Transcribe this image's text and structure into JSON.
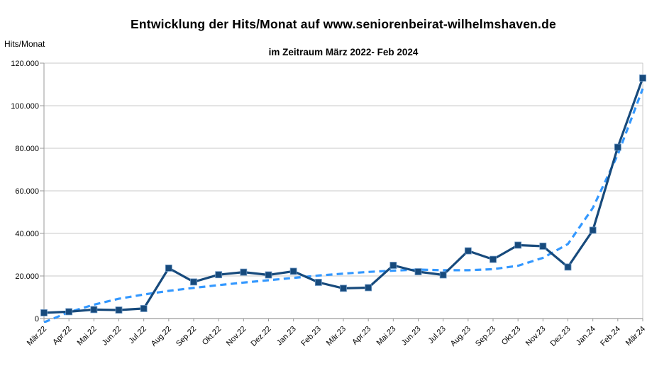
{
  "header": {
    "title": "Entwicklung der Hits/Monat auf www.seniorenbeirat-wilhelmshaven.de",
    "subtitle": "im Zeitraum März 2022- Feb 2024"
  },
  "chart_data": {
    "type": "line",
    "title": "Entwicklung der Hits/Monat auf www.seniorenbeirat-wilhelmshaven.de",
    "subtitle": "im Zeitraum März 2022- Feb 2024",
    "xlabel": "",
    "ylabel": "Hits/Monat",
    "ylim": [
      0,
      120000
    ],
    "grid": "horizontal",
    "legend_position": "none",
    "y_ticks": [
      0,
      20000,
      40000,
      60000,
      80000,
      100000,
      120000
    ],
    "y_tick_labels": [
      "0",
      "20.000",
      "40.000",
      "60.000",
      "80.000",
      "100.000",
      "120.000"
    ],
    "x_tick_rotation_deg": 45,
    "categories": [
      "Mär.22",
      "Apr.22",
      "Mai.22",
      "Jun.22",
      "Jul.22",
      "Aug.22",
      "Sep.22",
      "Okt.22",
      "Nov.22",
      "Dez.22",
      "Jan.23",
      "Feb.23",
      "Mär.23",
      "Apr.23",
      "Mai.23",
      "Jun.23",
      "Jul.23",
      "Aug.23",
      "Sep.23",
      "Okt.23",
      "Nov.23",
      "Dez.23",
      "Jan.24",
      "Feb.24",
      "Mär.24"
    ],
    "series": [
      {
        "name": "Hits/Monat",
        "style": "solid-line-square-markers",
        "color": "#174A7C",
        "values": [
          2700,
          3200,
          4200,
          4000,
          4700,
          23700,
          17200,
          20600,
          21800,
          20500,
          22200,
          17000,
          14200,
          14500,
          25000,
          22000,
          20500,
          31800,
          27800,
          34500,
          34000,
          24200,
          41500,
          80500,
          113000
        ]
      },
      {
        "name": "Trend",
        "style": "dashed-line",
        "color": "#3398FF",
        "values": [
          -1800,
          3000,
          6500,
          9300,
          11300,
          13000,
          14400,
          15700,
          16900,
          18000,
          19100,
          20200,
          21100,
          21900,
          22500,
          23000,
          22700,
          22700,
          23200,
          24800,
          28500,
          35000,
          52000,
          77000,
          108000
        ]
      }
    ],
    "colors": {
      "series_main": "#174A7C",
      "series_trend": "#3398FF",
      "gridline": "#c9c9c9",
      "axis": "#9a9a9a",
      "text": "#000000",
      "background": "#ffffff"
    }
  }
}
